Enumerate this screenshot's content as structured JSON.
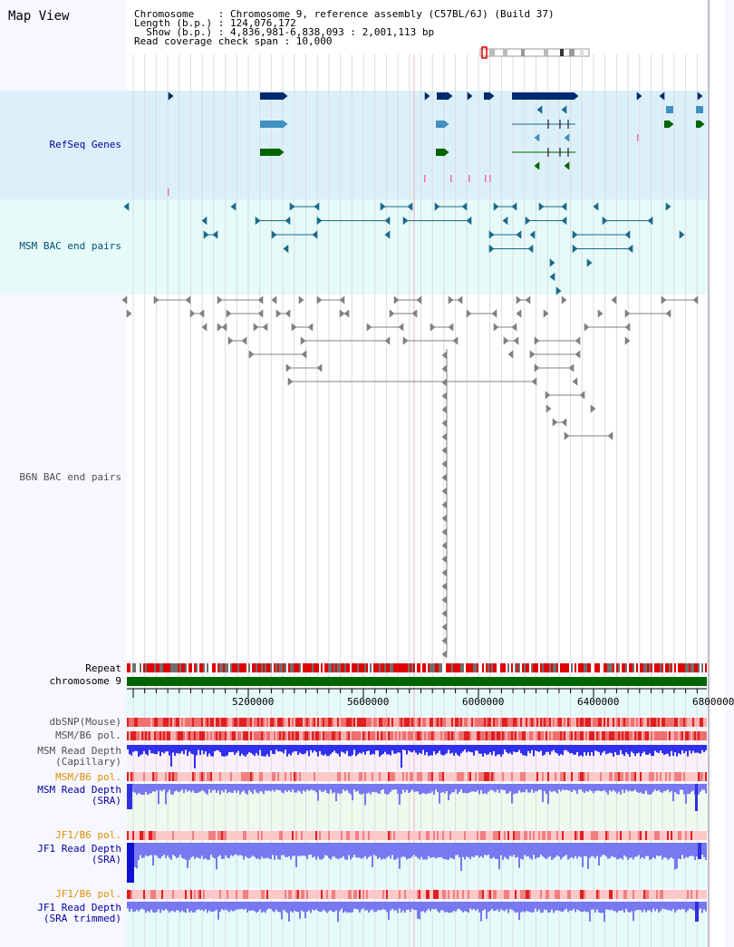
{
  "title": "Map View",
  "info": {
    "chromosome": "Chromosome    : Chromosome 9, reference assembly (C57BL/6J) (Build 37)",
    "length": "Length (b.p.) : 124,076,172",
    "show": "  Show (b.p.) : 4,836,981-6,838,093 : 2,001,113 bp",
    "coverage": "Read coverage check span : 10,000"
  },
  "tracks": {
    "refseq": "RefSeq Genes",
    "msm_bac": "MSM BAC end pairs",
    "b6n_bac": "B6N BAC end pairs",
    "repeat": "Repeat",
    "chromosome": "chromosome 9",
    "dbsnp": "dbSNP(Mouse)",
    "msm_b6_pol_1": "MSM/B6 pol.",
    "msm_read_depth_cap_1": "MSM Read Depth",
    "msm_read_depth_cap_2": "(Capillary)",
    "msm_b6_pol_2": "MSM/B6 pol.",
    "msm_read_depth_sra_1": "MSM Read Depth",
    "msm_read_depth_sra_2": "(SRA)",
    "jf1_b6_pol_1": "JF1/B6 pol.",
    "jf1_read_depth_sra_1": "JF1 Read Depth",
    "jf1_read_depth_sra_2": "(SRA)",
    "jf1_b6_pol_2": "JF1/B6 pol.",
    "jf1_read_depth_trim_1": "JF1 Read Depth",
    "jf1_read_depth_trim_2": "(SRA trimmed)"
  },
  "scale_labels": [
    "5200000",
    "5600000",
    "6000000",
    "6400000",
    "6800000"
  ],
  "colors": {
    "refseq_bg": "#dcf0fa",
    "msm_bg": "#e6fafa",
    "gene_dark": "#002a6e",
    "gene_mid": "#4090c0",
    "gene_green": "#006400",
    "bac_teal": "#1a6a8a",
    "bac_gray": "#808080",
    "repeat_red": "#e00000",
    "chrom_green": "#006400",
    "depth_blue": "#3030f0",
    "depth_light": "#7878f0"
  }
}
